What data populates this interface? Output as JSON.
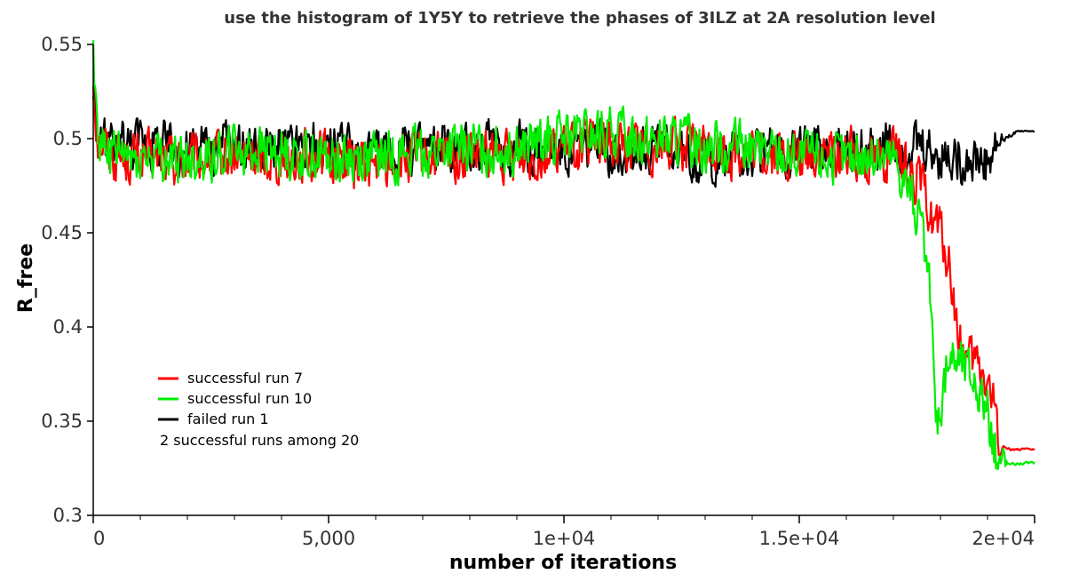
{
  "chart_data": {
    "type": "line",
    "title": "use the histogram of 1Y5Y to retrieve the phases of 3ILZ at 2A resolution level",
    "xlabel": "number of iterations",
    "ylabel": "R_free",
    "xlim": [
      0,
      20000
    ],
    "ylim": [
      0.3,
      0.55
    ],
    "xticks": [
      0,
      5000,
      10000,
      15000,
      20000
    ],
    "xtick_labels": [
      "0",
      "5,000",
      "1e+04",
      "1.5e+04",
      "2e+04"
    ],
    "yticks": [
      0.3,
      0.35,
      0.4,
      0.45,
      0.5,
      0.55
    ],
    "ytick_labels": [
      "0.3",
      "0.35",
      "0.4",
      "0.45",
      "0.5",
      "0.55"
    ],
    "grid": false,
    "legend_position": "bottom-left",
    "legend_note": "2 successful runs among 20",
    "series": [
      {
        "name": "successful run 7",
        "color": "#ff0000",
        "x": [
          0,
          100,
          500,
          1000,
          2000,
          3000,
          4000,
          5000,
          6000,
          7000,
          8000,
          9000,
          10000,
          11000,
          12000,
          13000,
          14000,
          15000,
          16000,
          17000,
          17500,
          17800,
          18000,
          18200,
          18400,
          18600,
          18800,
          19000,
          19200,
          19300,
          19500,
          20000
        ],
        "y": [
          0.53,
          0.5,
          0.49,
          0.49,
          0.488,
          0.49,
          0.49,
          0.49,
          0.485,
          0.49,
          0.49,
          0.49,
          0.495,
          0.497,
          0.497,
          0.495,
          0.492,
          0.49,
          0.492,
          0.49,
          0.48,
          0.46,
          0.45,
          0.43,
          0.39,
          0.38,
          0.38,
          0.37,
          0.35,
          0.337,
          0.335,
          0.335
        ]
      },
      {
        "name": "successful run 10",
        "color": "#00ee00",
        "x": [
          0,
          100,
          500,
          1000,
          2000,
          3000,
          4000,
          5000,
          6000,
          7000,
          8000,
          9000,
          10000,
          11000,
          12000,
          13000,
          14000,
          15000,
          16000,
          17000,
          17400,
          17600,
          17800,
          17900,
          18000,
          18200,
          18500,
          18800,
          19000,
          19200,
          19400,
          20000
        ],
        "y": [
          0.55,
          0.5,
          0.49,
          0.49,
          0.488,
          0.495,
          0.493,
          0.49,
          0.49,
          0.493,
          0.495,
          0.495,
          0.5,
          0.503,
          0.5,
          0.497,
          0.495,
          0.49,
          0.49,
          0.49,
          0.47,
          0.45,
          0.41,
          0.35,
          0.36,
          0.385,
          0.38,
          0.37,
          0.355,
          0.33,
          0.327,
          0.328
        ]
      },
      {
        "name": "failed run 1",
        "color": "#000000",
        "x": [
          0,
          100,
          500,
          1000,
          2000,
          3000,
          4000,
          5000,
          6000,
          7000,
          8000,
          9000,
          10000,
          11000,
          12000,
          13000,
          14000,
          15000,
          16000,
          17000,
          17500,
          18000,
          18500,
          19000,
          19200,
          19400,
          19600,
          20000
        ],
        "y": [
          0.52,
          0.5,
          0.495,
          0.5,
          0.495,
          0.497,
          0.495,
          0.495,
          0.49,
          0.495,
          0.495,
          0.495,
          0.495,
          0.495,
          0.495,
          0.49,
          0.49,
          0.495,
          0.495,
          0.497,
          0.495,
          0.49,
          0.49,
          0.485,
          0.495,
          0.5,
          0.504,
          0.504
        ]
      }
    ]
  }
}
